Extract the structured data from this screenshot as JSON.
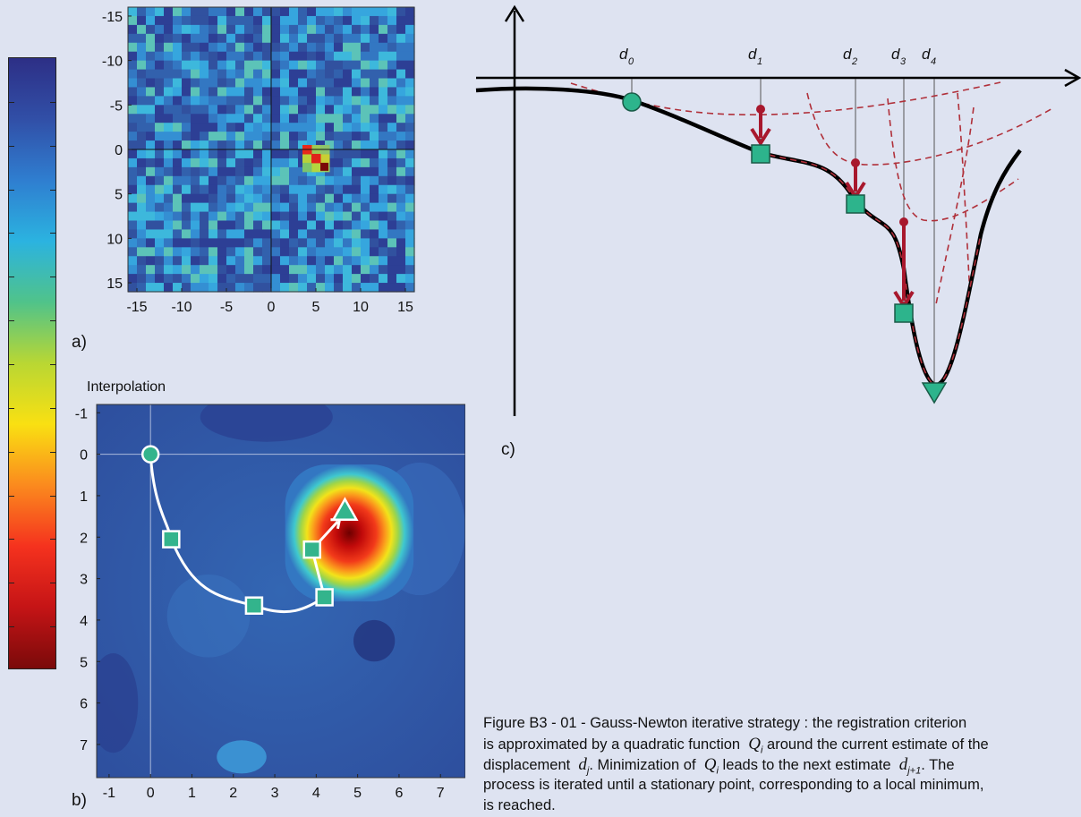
{
  "colorbar": {
    "stops": [
      "#7a0a0a",
      "#c51416",
      "#f5321e",
      "#fb8a1e",
      "#f9e012",
      "#b9d733",
      "#50c38a",
      "#2bb3e0",
      "#2f7ed0",
      "#314fa7",
      "#2d2f86"
    ]
  },
  "panel_a": {
    "label": "a)"
  },
  "panel_b": {
    "label": "b)",
    "title": "Interpolation"
  },
  "panel_c": {
    "label": "c)"
  },
  "caption": {
    "line1": "Figure B3 - 01 - Gauss-Newton iterative strategy : the registration criterion",
    "line2a": "is approximated by a quadratic function",
    "line2b": "around the current estimate of the",
    "line3a": "displacement",
    "line3b": ". Minimization of",
    "line3c": "leads to the next estimate",
    "line3d": ". The",
    "line4": "process is iterated until a stationary point, corresponding to a local minimum,",
    "line5": "is reached.",
    "sym_Q": "Q",
    "sym_Q_sub": "i",
    "sym_d": "d",
    "sym_d_sub": "j",
    "sym_dn_sub": "j+1"
  },
  "chart_data": [
    {
      "type": "heatmap",
      "panel": "a",
      "x_ticks": [
        "-15",
        "-10",
        "-5",
        "0",
        "5",
        "10",
        "15"
      ],
      "y_ticks": [
        "-15",
        "-10",
        "-5",
        "0",
        "5",
        "10",
        "15"
      ],
      "xlim": [
        -16,
        16
      ],
      "ylim": [
        -16,
        16
      ],
      "peak": {
        "x": 5,
        "y": 1
      },
      "crosshair": {
        "x": 0,
        "y": 0
      }
    },
    {
      "type": "line",
      "panel": "b",
      "title": "Interpolation",
      "x_ticks": [
        "-1",
        "0",
        "1",
        "2",
        "3",
        "4",
        "5",
        "6",
        "7"
      ],
      "y_ticks": [
        "-1",
        "0",
        "1",
        "2",
        "3",
        "4",
        "5",
        "6",
        "7"
      ],
      "xlim": [
        -1.3,
        7.6
      ],
      "ylim": [
        -1.2,
        7.8
      ],
      "peak": {
        "x": 4.8,
        "y": 1.8
      },
      "path": [
        [
          0,
          0
        ],
        [
          0.5,
          2.05
        ],
        [
          2.5,
          3.65
        ],
        [
          4.2,
          3.45
        ],
        [
          3.9,
          2.3
        ],
        [
          4.65,
          1.45
        ]
      ],
      "start": [
        0,
        0
      ],
      "iterates": [
        [
          0.5,
          2.05
        ],
        [
          2.5,
          3.65
        ],
        [
          4.2,
          3.45
        ],
        [
          3.9,
          2.3
        ]
      ],
      "end": [
        4.65,
        1.45
      ]
    },
    {
      "type": "line",
      "panel": "c",
      "estimates": [
        {
          "name": "d",
          "sub": "0"
        },
        {
          "name": "d",
          "sub": "1"
        },
        {
          "name": "d",
          "sub": "2"
        },
        {
          "name": "d",
          "sub": "3"
        },
        {
          "name": "d",
          "sub": "4"
        }
      ]
    }
  ]
}
